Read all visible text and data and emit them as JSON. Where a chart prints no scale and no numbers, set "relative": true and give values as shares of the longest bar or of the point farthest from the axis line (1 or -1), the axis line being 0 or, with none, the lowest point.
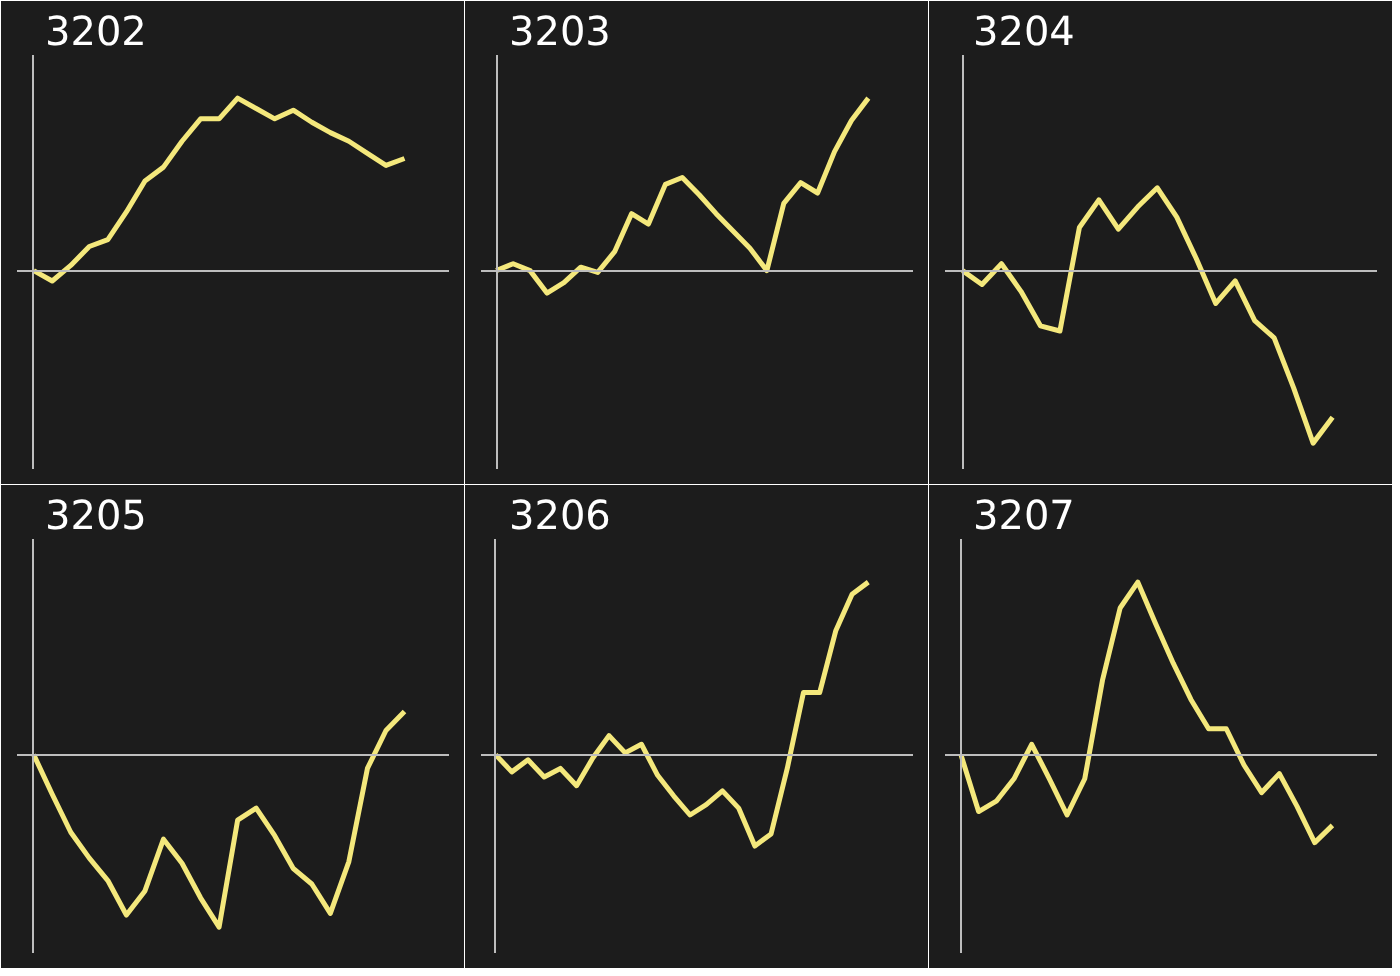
{
  "chart_data": [
    {
      "type": "line",
      "title": "3202",
      "relative": true,
      "categories": [
        null,
        null,
        null,
        null,
        null,
        null,
        null,
        null,
        null,
        null,
        null,
        null,
        null,
        null,
        null,
        null,
        null,
        null,
        null,
        null,
        null
      ],
      "series": [
        {
          "color": "#f4e87c",
          "values": [
            0,
            -0.06,
            0.03,
            0.14,
            0.18,
            0.34,
            0.52,
            0.6,
            0.75,
            0.88,
            0.88,
            1,
            0.94,
            0.88,
            0.93,
            0.86,
            0.8,
            0.75,
            0.68,
            0.61,
            0.65
          ]
        }
      ]
    },
    {
      "type": "line",
      "title": "3203",
      "relative": true,
      "categories": [
        null,
        null,
        null,
        null,
        null,
        null,
        null,
        null,
        null,
        null,
        null,
        null,
        null,
        null,
        null,
        null,
        null,
        null,
        null,
        null,
        null,
        null,
        null
      ],
      "series": [
        {
          "color": "#f4e87c",
          "values": [
            0,
            0.04,
            0,
            -0.13,
            -0.07,
            0.02,
            -0.01,
            0.11,
            0.33,
            0.27,
            0.5,
            0.54,
            0.44,
            0.33,
            0.23,
            0.13,
            0,
            0.39,
            0.51,
            0.45,
            0.69,
            0.87,
            1
          ]
        }
      ]
    },
    {
      "type": "line",
      "title": "3204",
      "relative": true,
      "categories": [
        null,
        null,
        null,
        null,
        null,
        null,
        null,
        null,
        null,
        null,
        null,
        null,
        null,
        null,
        null,
        null,
        null,
        null,
        null,
        null
      ],
      "series": [
        {
          "color": "#f4e87c",
          "values": [
            0,
            -0.08,
            0.04,
            -0.12,
            -0.32,
            -0.35,
            0.25,
            0.41,
            0.24,
            0.37,
            0.48,
            0.31,
            0.07,
            -0.19,
            -0.06,
            -0.29,
            -0.39,
            -0.68,
            -1,
            -0.85
          ]
        }
      ]
    },
    {
      "type": "line",
      "title": "3205",
      "relative": true,
      "categories": [
        null,
        null,
        null,
        null,
        null,
        null,
        null,
        null,
        null,
        null,
        null,
        null,
        null,
        null,
        null,
        null,
        null,
        null,
        null,
        null,
        null
      ],
      "series": [
        {
          "color": "#f4e87c",
          "values": [
            0,
            -0.23,
            -0.45,
            -0.6,
            -0.73,
            -0.93,
            -0.79,
            -0.49,
            -0.63,
            -0.83,
            -1,
            -0.38,
            -0.31,
            -0.47,
            -0.66,
            -0.75,
            -0.92,
            -0.62,
            -0.08,
            0.14,
            0.25
          ]
        }
      ]
    },
    {
      "type": "line",
      "title": "3206",
      "relative": true,
      "categories": [
        null,
        null,
        null,
        null,
        null,
        null,
        null,
        null,
        null,
        null,
        null,
        null,
        null,
        null,
        null,
        null,
        null,
        null,
        null,
        null,
        null,
        null,
        null,
        null
      ],
      "series": [
        {
          "color": "#f4e87c",
          "values": [
            0,
            -0.1,
            -0.03,
            -0.13,
            -0.08,
            -0.18,
            -0.02,
            0.11,
            0.01,
            0.06,
            -0.12,
            -0.24,
            -0.35,
            -0.29,
            -0.21,
            -0.31,
            -0.53,
            -0.46,
            -0.08,
            0.36,
            0.36,
            0.72,
            0.93,
            1
          ]
        }
      ]
    },
    {
      "type": "line",
      "title": "3207",
      "relative": true,
      "categories": [
        null,
        null,
        null,
        null,
        null,
        null,
        null,
        null,
        null,
        null,
        null,
        null,
        null,
        null,
        null,
        null,
        null,
        null,
        null,
        null,
        null,
        null
      ],
      "series": [
        {
          "color": "#f4e87c",
          "values": [
            0,
            -0.33,
            -0.27,
            -0.14,
            0.06,
            -0.14,
            -0.35,
            -0.14,
            0.43,
            0.85,
            1,
            0.76,
            0.53,
            0.32,
            0.15,
            0.15,
            -0.06,
            -0.22,
            -0.11,
            -0.3,
            -0.51,
            -0.41
          ]
        }
      ]
    }
  ]
}
